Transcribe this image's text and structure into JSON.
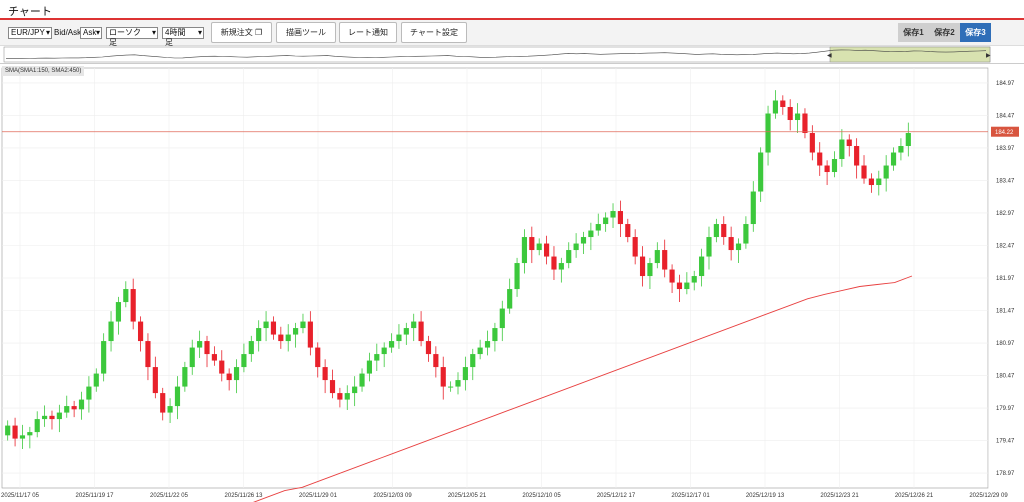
{
  "window": {
    "title": "チャート"
  },
  "toolbar": {
    "symbol": "EUR/JPY",
    "price_type_label": "Bid/Ask",
    "price_type": "Ask",
    "chart_type": "ローソク足",
    "timeframe": "4時間足",
    "new_order": "新規注文",
    "drawing_tools": "描画ツール",
    "rate_alert": "レート通知",
    "chart_settings": "チャート設定",
    "saves": [
      "保存1",
      "保存2",
      "保存3"
    ],
    "active_save": "保存3"
  },
  "indicator_legend": "SMA(SMA1:150, SMA2:450)",
  "colors": {
    "up": "#3cc83c",
    "down": "#e8212b",
    "sma": "#e84040",
    "price_line": "#e06a5a",
    "accent": "#d33",
    "save_active": "#2f6eb8"
  },
  "chart_data": {
    "type": "candlestick",
    "symbol": "EUR/JPY",
    "timeframe": "4時間足",
    "ylim": [
      178.74,
      185.2
    ],
    "yticks": [
      "184.97",
      "184.47",
      "183.97",
      "183.47",
      "182.97",
      "182.47",
      "181.97",
      "181.47",
      "180.97",
      "180.47",
      "179.97",
      "179.47",
      "178.97"
    ],
    "xticks": [
      "2025/11/17 05",
      "2025/11/19 17",
      "2025/11/22 05",
      "2025/11/26 13",
      "2025/11/29 01",
      "2025/12/03 09",
      "2025/12/05 21",
      "2025/12/10 05",
      "2025/12/12 17",
      "2025/12/17 01",
      "2025/12/19 13",
      "2025/12/23 21",
      "2025/12/26 21",
      "2025/12/29 09"
    ],
    "current_price": "184.22",
    "current_price_value": 184.22,
    "close": [
      179.7,
      179.5,
      179.55,
      179.6,
      179.8,
      179.85,
      179.8,
      179.9,
      180.0,
      179.95,
      180.1,
      180.3,
      180.5,
      181.0,
      181.3,
      181.6,
      181.8,
      181.3,
      181.0,
      180.6,
      180.2,
      179.9,
      180.0,
      180.3,
      180.6,
      180.9,
      181.0,
      180.8,
      180.7,
      180.5,
      180.4,
      180.6,
      180.8,
      181.0,
      181.2,
      181.3,
      181.1,
      181.0,
      181.1,
      181.2,
      181.3,
      180.9,
      180.6,
      180.4,
      180.2,
      180.1,
      180.2,
      180.3,
      180.5,
      180.7,
      180.8,
      180.9,
      181.0,
      181.1,
      181.2,
      181.3,
      181.0,
      180.8,
      180.6,
      180.3,
      180.3,
      180.4,
      180.6,
      180.8,
      180.9,
      181.0,
      181.2,
      181.5,
      181.8,
      182.2,
      182.6,
      182.4,
      182.5,
      182.3,
      182.1,
      182.2,
      182.4,
      182.5,
      182.6,
      182.7,
      182.8,
      182.9,
      183.0,
      182.8,
      182.6,
      182.3,
      182.0,
      182.2,
      182.4,
      182.1,
      181.9,
      181.8,
      181.9,
      182.0,
      182.3,
      182.6,
      182.8,
      182.6,
      182.4,
      182.5,
      182.8,
      183.3,
      183.9,
      184.5,
      184.7,
      184.6,
      184.4,
      184.5,
      184.2,
      183.9,
      183.7,
      183.6,
      183.8,
      184.1,
      184.0,
      183.7,
      183.5,
      183.4,
      183.5,
      183.7,
      183.9,
      184.0,
      184.2
    ],
    "series": [
      {
        "name": "SMA1:150",
        "values": [
          178.5,
          178.6,
          178.7,
          178.75,
          178.85,
          178.95,
          179.05,
          179.15,
          179.25,
          179.35,
          179.45,
          179.55,
          179.65,
          179.75,
          179.85,
          179.95,
          180.05,
          180.15,
          180.25,
          180.35,
          180.45,
          180.55,
          180.65,
          180.75,
          180.85,
          180.95,
          181.05,
          181.15,
          181.25,
          181.35,
          181.45,
          181.55,
          181.65,
          181.72,
          181.78,
          181.84,
          181.87,
          181.9,
          182.0
        ]
      }
    ]
  }
}
